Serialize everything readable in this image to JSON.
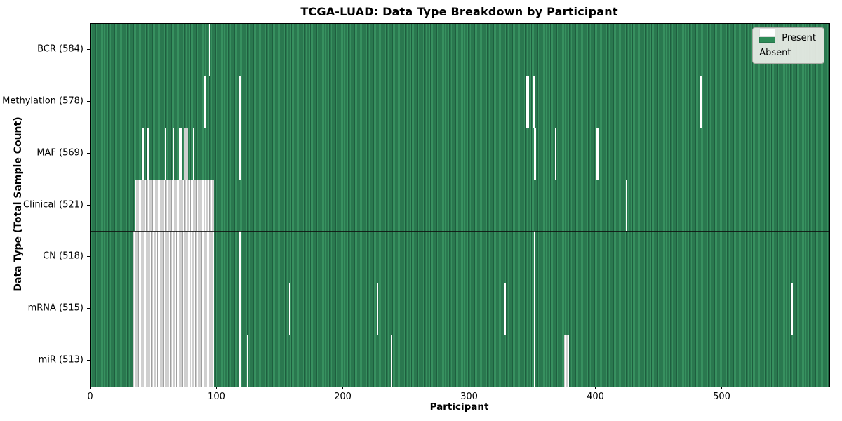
{
  "title": "TCGA-LUAD: Data Type Breakdown by Participant",
  "axes": {
    "xlabel": "Participant",
    "ylabel": "Data Type (Total Sample Count)"
  },
  "legend": {
    "present": "Present",
    "absent": "Absent"
  },
  "colors": {
    "present": "#2e8b57",
    "present_stripe_dark": "#1e5f3f",
    "present_stripe_light": "#37905f",
    "absent": "#ffffff",
    "absent_grid": "#9f9f9f",
    "legend_bg": "#e9ece6",
    "legend_border": "#a9aba5",
    "axis": "#000000"
  },
  "chart_data": {
    "type": "heatmap",
    "subtype": "presence-absence-matrix",
    "title": "TCGA-LUAD: Data Type Breakdown by Participant",
    "xlabel": "Participant",
    "ylabel": "Data Type (Total Sample Count)",
    "legend_entries": [
      "Present",
      "Absent"
    ],
    "legend_position": "upper right",
    "grid": false,
    "x_range": [
      0,
      585
    ],
    "x_ticks": [
      0,
      100,
      200,
      300,
      400,
      500
    ],
    "total_participants": 585,
    "cell_encoding": "present=green, absent=white",
    "rows": [
      {
        "label": "BCR (584)",
        "data_type": "BCR",
        "present": 584,
        "absent": 1,
        "absent_ranges": [
          [
            94,
            94
          ]
        ]
      },
      {
        "label": "Methylation (578)",
        "data_type": "Methylation",
        "present": 578,
        "absent": 7,
        "absent_ranges": [
          [
            90,
            90
          ],
          [
            118,
            118
          ],
          [
            345,
            346
          ],
          [
            350,
            351
          ],
          [
            483,
            483
          ]
        ]
      },
      {
        "label": "MAF (569)",
        "data_type": "MAF",
        "present": 569,
        "absent": 16,
        "absent_ranges": [
          [
            41,
            41
          ],
          [
            45,
            45
          ],
          [
            59,
            59
          ],
          [
            65,
            65
          ],
          [
            70,
            71
          ],
          [
            74,
            76
          ],
          [
            81,
            81
          ],
          [
            118,
            118
          ],
          [
            351,
            352
          ],
          [
            368,
            368
          ],
          [
            400,
            401
          ]
        ]
      },
      {
        "label": "Clinical (521)",
        "data_type": "Clinical",
        "present": 521,
        "absent": 64,
        "absent_ranges": [
          [
            35,
            97
          ],
          [
            424,
            424
          ]
        ]
      },
      {
        "label": "CN (518)",
        "data_type": "CN",
        "present": 518,
        "absent": 67,
        "absent_ranges": [
          [
            34,
            97
          ],
          [
            118,
            118
          ],
          [
            262,
            262
          ],
          [
            351,
            351
          ]
        ]
      },
      {
        "label": "mRNA (515)",
        "data_type": "mRNA",
        "present": 515,
        "absent": 70,
        "absent_ranges": [
          [
            34,
            97
          ],
          [
            118,
            118
          ],
          [
            157,
            157
          ],
          [
            227,
            227
          ],
          [
            328,
            328
          ],
          [
            351,
            351
          ],
          [
            555,
            555
          ]
        ]
      },
      {
        "label": "miR (513)",
        "data_type": "miR",
        "present": 513,
        "absent": 72,
        "absent_ranges": [
          [
            34,
            97
          ],
          [
            118,
            118
          ],
          [
            124,
            124
          ],
          [
            238,
            238
          ],
          [
            351,
            351
          ],
          [
            375,
            378
          ]
        ]
      }
    ]
  }
}
